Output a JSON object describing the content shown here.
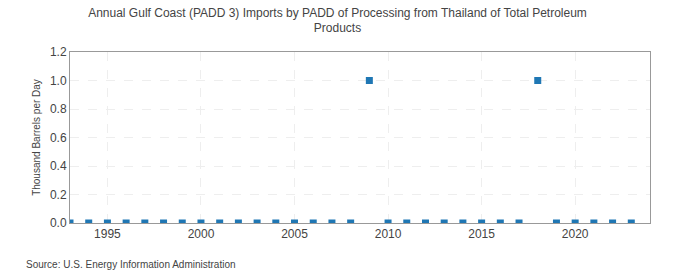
{
  "chart_data": {
    "type": "scatter",
    "title": "Annual Gulf Coast (PADD 3) Imports by PADD of Processing from Thailand of Total Petroleum\nProducts",
    "ylabel": "Thousand Barrels per Day",
    "annotation": "Source: U.S. Energy Information Administration",
    "x": [
      1993,
      1994,
      1995,
      1996,
      1997,
      1998,
      1999,
      2000,
      2001,
      2002,
      2003,
      2004,
      2005,
      2006,
      2007,
      2008,
      2009,
      2010,
      2011,
      2012,
      2013,
      2014,
      2015,
      2016,
      2017,
      2018,
      2019,
      2020,
      2021,
      2022,
      2023
    ],
    "values": [
      0,
      0,
      0,
      0,
      0,
      0,
      0,
      0,
      0,
      0,
      0,
      0,
      0,
      0,
      0,
      0,
      1.0,
      0,
      0,
      0,
      0,
      0,
      0,
      0,
      0,
      1.0,
      0,
      0,
      0,
      0,
      0
    ],
    "marker": "square",
    "xlim": [
      1993,
      2024
    ],
    "ylim": [
      0,
      1.2
    ],
    "xticks": [
      1995,
      2000,
      2005,
      2010,
      2015,
      2020
    ],
    "yticks": [
      {
        "value": 0.0,
        "label": "0.0"
      },
      0.2,
      0.4,
      0.6,
      0.8,
      {
        "value": 1.0,
        "label": "1.0"
      },
      1.2
    ],
    "grid": true
  }
}
